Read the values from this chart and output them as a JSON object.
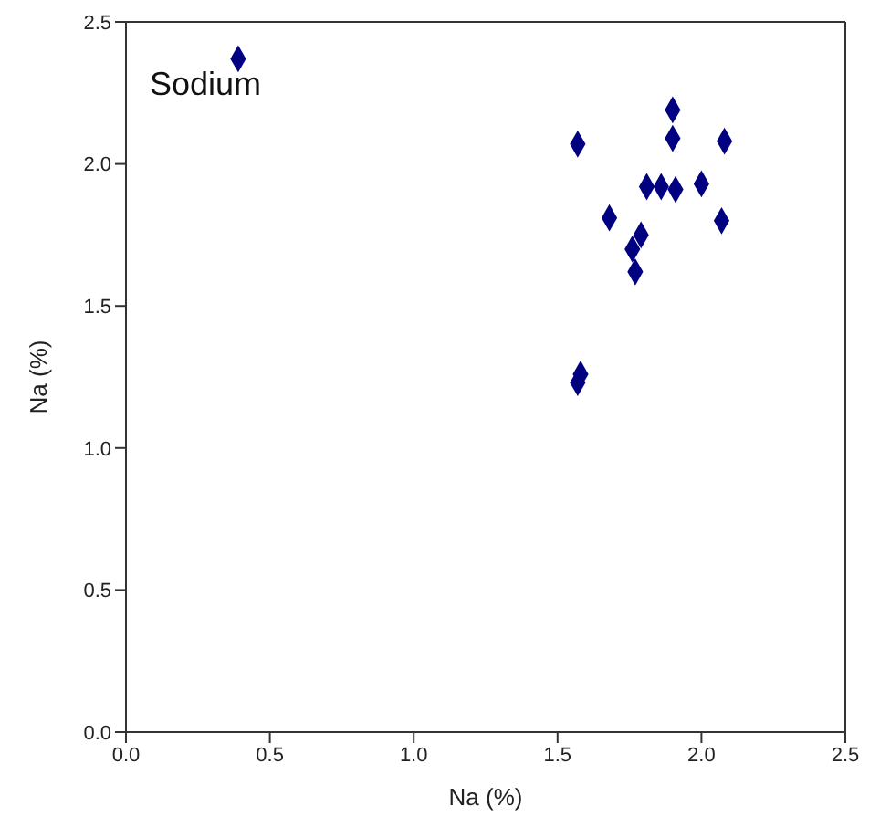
{
  "chart_data": {
    "type": "scatter",
    "xlabel": "Na (%)",
    "ylabel": "Na (%)",
    "annotations": [
      "Sodium"
    ],
    "xlim": [
      0,
      2.5
    ],
    "ylim": [
      0,
      2.5
    ],
    "xticks": [
      {
        "value": 0,
        "label": "0.0"
      },
      {
        "value": 0.5,
        "label": "0.5"
      },
      {
        "value": 1,
        "label": "1.0"
      },
      {
        "value": 1.5,
        "label": "1.5"
      },
      {
        "value": 2,
        "label": "2.0"
      },
      {
        "value": 2.5,
        "label": "2.5"
      }
    ],
    "yticks": [
      {
        "value": 0,
        "label": "0.0"
      },
      {
        "value": 0.5,
        "label": "0.5"
      },
      {
        "value": 1,
        "label": "1.0"
      },
      {
        "value": 1.5,
        "label": "1.5"
      },
      {
        "value": 2,
        "label": "2.0"
      },
      {
        "value": 2.5,
        "label": "2.5"
      }
    ],
    "grid": false,
    "legend": false,
    "marker": "diamond",
    "series": [
      {
        "color": "#000080",
        "x": [
          0.39,
          1.57,
          1.9,
          1.9,
          2.08,
          1.81,
          1.86,
          1.91,
          2.0,
          1.68,
          2.07,
          1.79,
          1.76,
          1.77,
          1.58,
          1.57
        ],
        "values": [
          2.37,
          2.07,
          2.19,
          2.09,
          2.08,
          1.92,
          1.92,
          1.91,
          1.93,
          1.81,
          1.8,
          1.75,
          1.7,
          1.62,
          1.26,
          1.23
        ]
      }
    ]
  }
}
